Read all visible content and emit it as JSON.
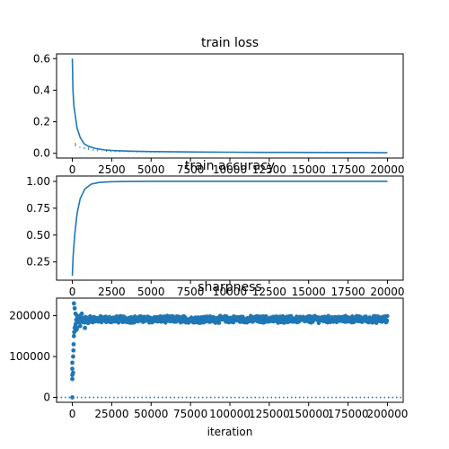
{
  "chart_data": [
    {
      "type": "line",
      "title": "train loss",
      "xlabel": "",
      "ylabel": "",
      "xlim": [
        -10000,
        210000
      ],
      "ylim": [
        -0.03,
        0.63
      ],
      "grid": false,
      "x_ticks": [
        0,
        2500,
        5000,
        7500,
        10000,
        12500,
        15000,
        17500,
        20000
      ],
      "x_tick_labels": [
        "0",
        "2500",
        "5000",
        "7500",
        "10000",
        "12500",
        "15000",
        "17500",
        "20000"
      ],
      "y_ticks": [
        0.0,
        0.2,
        0.4,
        0.6
      ],
      "y_tick_labels": [
        "0.0",
        "0.2",
        "0.4",
        "0.6"
      ],
      "series": [
        {
          "color": "#1f77b4",
          "x": [
            0,
            400,
            1000,
            2000,
            3000,
            5000,
            7500,
            10000,
            15000,
            20000,
            25000,
            30000,
            40000,
            50000,
            60000,
            80000,
            100000,
            120000,
            140000,
            160000,
            180000,
            200000
          ],
          "y": [
            0.6,
            0.4,
            0.3,
            0.23,
            0.16,
            0.1,
            0.06,
            0.045,
            0.03,
            0.022,
            0.018,
            0.016,
            0.013,
            0.011,
            0.01,
            0.008,
            0.007,
            0.006,
            0.006,
            0.005,
            0.005,
            0.004
          ]
        }
      ]
    },
    {
      "type": "line",
      "title": "train accuracy",
      "xlabel": "",
      "ylabel": "",
      "xlim": [
        -10000,
        210000
      ],
      "ylim": [
        0.08,
        1.05
      ],
      "grid": false,
      "x_ticks": [
        0,
        2500,
        5000,
        7500,
        10000,
        12500,
        15000,
        17500,
        20000
      ],
      "x_tick_labels": [
        "0",
        "2500",
        "5000",
        "7500",
        "10000",
        "12500",
        "15000",
        "17500",
        "20000"
      ],
      "y_ticks": [
        0.25,
        0.5,
        0.75,
        1.0
      ],
      "y_tick_labels": [
        "0.25",
        "0.50",
        "0.75",
        "1.00"
      ],
      "series": [
        {
          "color": "#1f77b4",
          "x": [
            0,
            500,
            1500,
            3000,
            5000,
            8000,
            12000,
            17000,
            25000,
            35000,
            50000,
            80000,
            120000,
            160000,
            200000
          ],
          "y": [
            0.12,
            0.3,
            0.5,
            0.7,
            0.84,
            0.93,
            0.975,
            0.99,
            0.997,
            0.999,
            1.0,
            1.0,
            1.0,
            1.0,
            1.0
          ]
        }
      ]
    },
    {
      "type": "scatter",
      "title": "sharpness",
      "xlabel": "iteration",
      "ylabel": "",
      "xlim": [
        -10000,
        210000
      ],
      "ylim": [
        -12000,
        243000
      ],
      "grid": false,
      "x_ticks": [
        0,
        25000,
        50000,
        75000,
        100000,
        125000,
        150000,
        175000,
        200000
      ],
      "x_tick_labels": [
        "0",
        "25000",
        "50000",
        "75000",
        "100000",
        "125000",
        "150000",
        "175000",
        "200000"
      ],
      "y_ticks": [
        0,
        100000,
        200000
      ],
      "y_tick_labels": [
        "0",
        "100000",
        "200000"
      ],
      "reference_line": {
        "y": 0,
        "style": "dotted",
        "color": "#1f77b4"
      },
      "series": [
        {
          "color": "#1f77b4",
          "marker": "circle",
          "band": {
            "x_start": 3000,
            "x_end": 200000,
            "y_low": 180000,
            "y_high": 202000
          },
          "x": [
            0,
            0,
            0,
            0,
            0,
            500,
            500,
            700,
            800,
            1000,
            1000,
            1200,
            1500,
            1500,
            2000,
            2000,
            2200,
            2500,
            2500,
            3000,
            3000,
            4000,
            5000,
            5000,
            6000,
            8000,
            10000,
            10000,
            12000,
            15000
          ],
          "y": [
            0,
            45000,
            55000,
            70000,
            85000,
            60000,
            100000,
            115000,
            130000,
            150000,
            230000,
            160000,
            170000,
            218000,
            175000,
            205000,
            180000,
            190000,
            165000,
            200000,
            170000,
            185000,
            200000,
            175000,
            205000,
            170000,
            195000,
            182000,
            190000,
            188000
          ]
        }
      ]
    }
  ]
}
